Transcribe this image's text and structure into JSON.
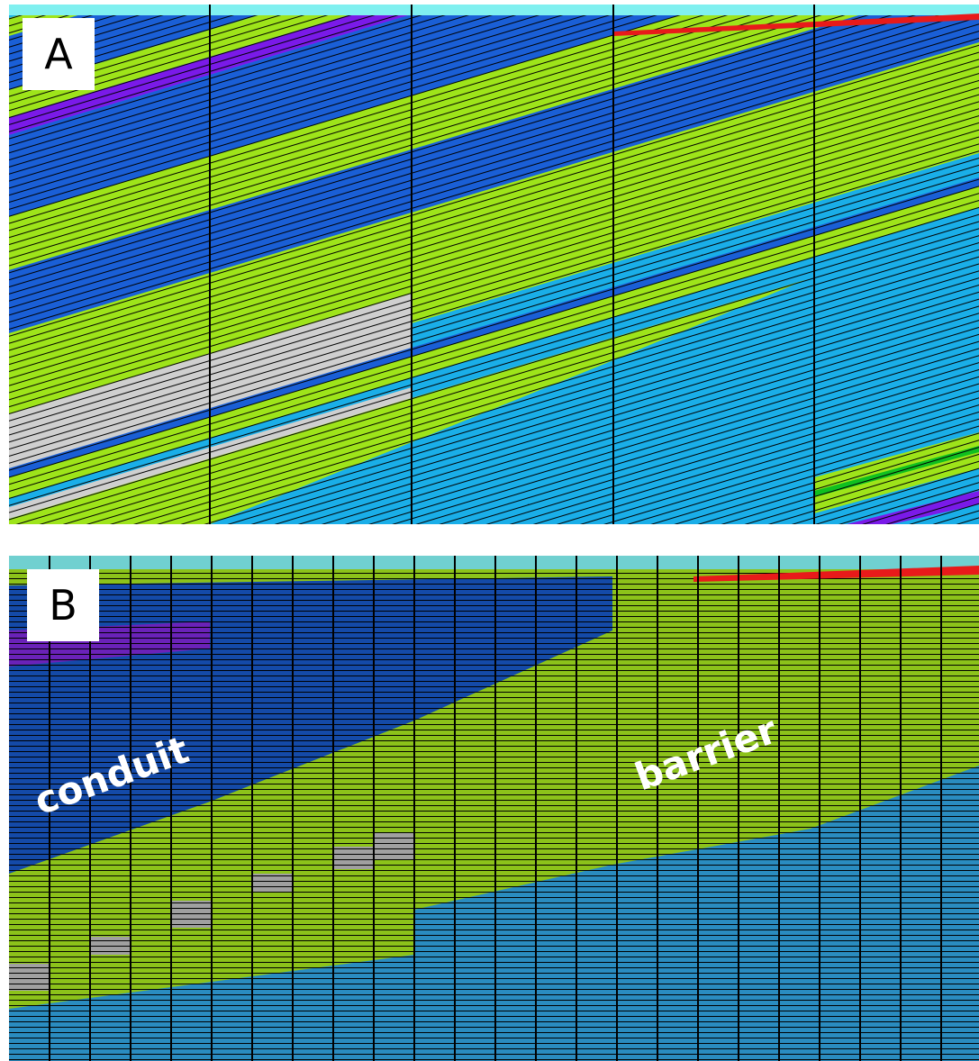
{
  "panels": [
    {
      "label": "A"
    },
    {
      "label": "B",
      "annotations": [
        "conduit",
        "barrier"
      ]
    }
  ]
}
